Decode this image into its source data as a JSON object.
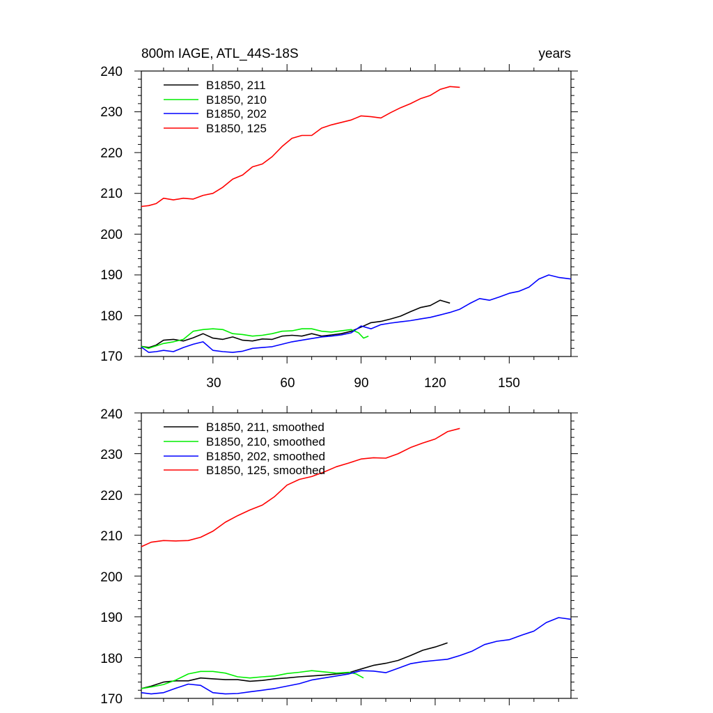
{
  "chart_data": [
    {
      "type": "line",
      "title_left": "800m IAGE, ATL_44S-18S",
      "title_right": "years",
      "xlim": [
        1,
        175
      ],
      "ylim": [
        170,
        240
      ],
      "xticks": [
        30,
        60,
        90,
        120,
        150
      ],
      "xtick_labels": [
        "30",
        "60",
        "90",
        "120",
        "150"
      ],
      "yticks": [
        170,
        180,
        190,
        200,
        210,
        220,
        230,
        240
      ],
      "ytick_labels": [
        "170",
        "180",
        "190",
        "200",
        "210",
        "220",
        "230",
        "240"
      ],
      "series": [
        {
          "name": "B1850, 211",
          "color": "#000000",
          "x": [
            1,
            4,
            7,
            10,
            14,
            18,
            22,
            26,
            30,
            34,
            38,
            42,
            46,
            50,
            54,
            58,
            62,
            66,
            70,
            74,
            78,
            82,
            86,
            90,
            94,
            98,
            102,
            106,
            110,
            114,
            118,
            122,
            126
          ],
          "y": [
            172.5,
            172.2,
            172.8,
            174.0,
            174.2,
            173.8,
            174.6,
            175.6,
            174.5,
            174.2,
            174.8,
            174.0,
            173.8,
            174.3,
            174.2,
            175.0,
            175.2,
            175.0,
            175.6,
            175.0,
            175.3,
            175.6,
            176.2,
            177.2,
            178.3,
            178.6,
            179.2,
            179.9,
            181.0,
            182.0,
            182.5,
            183.8,
            183.1
          ]
        },
        {
          "name": "B1850, 210",
          "color": "#00ee00",
          "x": [
            1,
            4,
            7,
            10,
            14,
            18,
            22,
            26,
            30,
            34,
            38,
            42,
            46,
            50,
            54,
            58,
            62,
            66,
            70,
            74,
            78,
            82,
            86,
            89,
            91,
            93
          ],
          "y": [
            172.5,
            172.0,
            172.6,
            173.2,
            173.6,
            174.2,
            176.2,
            176.6,
            176.8,
            176.6,
            175.6,
            175.4,
            175.0,
            175.2,
            175.6,
            176.2,
            176.3,
            176.8,
            176.8,
            176.2,
            176.0,
            176.3,
            176.6,
            175.8,
            174.5,
            175.0
          ]
        },
        {
          "name": "B1850, 202",
          "color": "#0000ff",
          "x": [
            1,
            4,
            7,
            10,
            14,
            18,
            22,
            26,
            30,
            34,
            38,
            42,
            46,
            50,
            54,
            58,
            62,
            66,
            70,
            74,
            78,
            82,
            86,
            90,
            94,
            98,
            102,
            106,
            110,
            114,
            118,
            122,
            126,
            130,
            134,
            138,
            142,
            146,
            150,
            154,
            158,
            162,
            166,
            170,
            175
          ],
          "y": [
            172.3,
            171.0,
            171.2,
            171.5,
            171.2,
            172.2,
            173.0,
            173.6,
            171.5,
            171.2,
            171.0,
            171.3,
            172.0,
            172.2,
            172.4,
            173.0,
            173.6,
            174.0,
            174.4,
            174.8,
            175.0,
            175.3,
            175.8,
            177.5,
            176.8,
            177.8,
            178.2,
            178.5,
            178.8,
            179.2,
            179.6,
            180.2,
            180.8,
            181.6,
            183.0,
            184.2,
            183.8,
            184.6,
            185.5,
            186.0,
            187.0,
            189.0,
            190.0,
            189.4,
            189.0
          ]
        },
        {
          "name": "B1850, 125",
          "color": "#ff0000",
          "x": [
            1,
            4,
            7,
            10,
            14,
            18,
            22,
            26,
            30,
            34,
            38,
            42,
            46,
            50,
            54,
            58,
            62,
            66,
            70,
            74,
            78,
            82,
            86,
            90,
            94,
            98,
            102,
            106,
            110,
            114,
            118,
            122,
            126,
            130
          ],
          "y": [
            206.8,
            207.0,
            207.5,
            208.8,
            208.4,
            208.8,
            208.6,
            209.5,
            210.0,
            211.5,
            213.5,
            214.5,
            216.5,
            217.2,
            219.0,
            221.5,
            223.5,
            224.2,
            224.2,
            226.0,
            226.8,
            227.4,
            228.0,
            229.0,
            228.8,
            228.5,
            229.8,
            231.0,
            232.0,
            233.2,
            234.0,
            235.5,
            236.2,
            236.0
          ]
        }
      ]
    },
    {
      "type": "line",
      "xlim": [
        1,
        175
      ],
      "ylim": [
        170,
        240
      ],
      "xticks": [
        30,
        60,
        90,
        120,
        150
      ],
      "yticks": [
        170,
        180,
        190,
        200,
        210,
        220,
        230,
        240
      ],
      "ytick_labels": [
        "170",
        "180",
        "190",
        "200",
        "210",
        "220",
        "230",
        "240"
      ],
      "series": [
        {
          "name": "B1850, 211, smoothed",
          "color": "#000000",
          "x": [
            1,
            5,
            10,
            15,
            20,
            25,
            30,
            35,
            40,
            45,
            50,
            55,
            60,
            65,
            70,
            75,
            80,
            85,
            90,
            95,
            100,
            105,
            110,
            115,
            120,
            125
          ],
          "y": [
            172.4,
            173.0,
            174.0,
            174.3,
            174.3,
            175.0,
            174.8,
            174.6,
            174.6,
            174.2,
            174.4,
            174.8,
            175.0,
            175.3,
            175.5,
            175.7,
            176.0,
            176.3,
            177.2,
            178.1,
            178.6,
            179.3,
            180.5,
            181.8,
            182.6,
            183.6
          ]
        },
        {
          "name": "B1850, 210, smoothed",
          "color": "#00ee00",
          "x": [
            1,
            5,
            10,
            15,
            20,
            25,
            30,
            35,
            40,
            45,
            50,
            55,
            60,
            65,
            70,
            75,
            80,
            85,
            88,
            91
          ],
          "y": [
            172.4,
            172.8,
            173.4,
            174.5,
            176.0,
            176.6,
            176.6,
            176.2,
            175.3,
            175.0,
            175.3,
            175.5,
            176.1,
            176.4,
            176.8,
            176.5,
            176.2,
            176.4,
            176.0,
            175.0
          ]
        },
        {
          "name": "B1850, 202, smoothed",
          "color": "#0000ff",
          "x": [
            1,
            5,
            10,
            15,
            20,
            25,
            30,
            35,
            40,
            45,
            50,
            55,
            60,
            65,
            70,
            75,
            80,
            85,
            90,
            95,
            100,
            105,
            110,
            115,
            120,
            125,
            130,
            135,
            140,
            145,
            150,
            155,
            160,
            165,
            170,
            175
          ],
          "y": [
            171.4,
            171.1,
            171.4,
            172.5,
            173.5,
            173.2,
            171.4,
            171.1,
            171.2,
            171.6,
            172.0,
            172.4,
            173.0,
            173.6,
            174.5,
            175.0,
            175.5,
            176.0,
            176.8,
            176.7,
            176.3,
            177.4,
            178.5,
            179.0,
            179.3,
            179.6,
            180.5,
            181.6,
            183.2,
            184.0,
            184.4,
            185.5,
            186.5,
            188.6,
            189.8,
            189.4
          ]
        },
        {
          "name": "B1850, 125, smoothed",
          "color": "#ff0000",
          "x": [
            1,
            5,
            10,
            15,
            20,
            25,
            30,
            35,
            40,
            45,
            50,
            55,
            60,
            65,
            70,
            75,
            80,
            85,
            90,
            95,
            100,
            105,
            110,
            115,
            120,
            125,
            130
          ],
          "y": [
            207.2,
            208.3,
            208.7,
            208.6,
            208.7,
            209.5,
            211.0,
            213.2,
            214.8,
            216.2,
            217.4,
            219.5,
            222.3,
            223.7,
            224.4,
            225.5,
            226.8,
            227.7,
            228.7,
            229.0,
            228.9,
            230.0,
            231.5,
            232.6,
            233.6,
            235.4,
            236.2
          ]
        }
      ]
    }
  ]
}
